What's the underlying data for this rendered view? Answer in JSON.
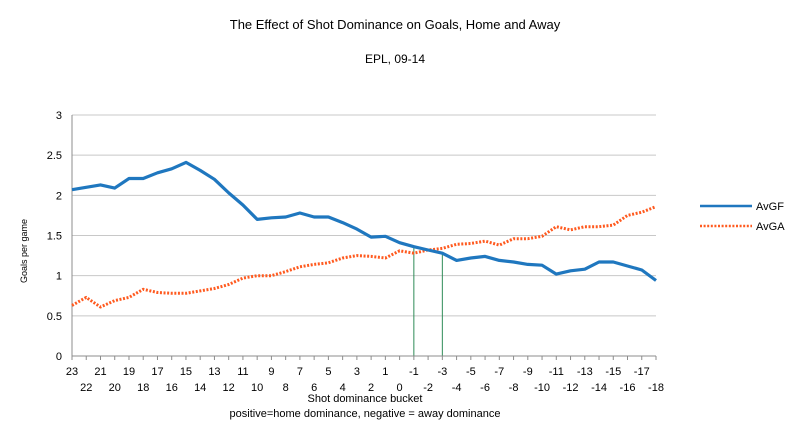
{
  "chart_data": {
    "type": "line",
    "title": "The Effect of Shot Dominance on Goals, Home and Away",
    "subtitle": "EPL, 09-14",
    "xlabel": "Shot dominance bucket",
    "xlabel2": "positive=home dominance, negative = away dominance",
    "ylabel": "Goals per game",
    "ylim": [
      0,
      3
    ],
    "yticks": [
      "0",
      "0.5",
      "1",
      "1.5",
      "2",
      "2.5",
      "3"
    ],
    "grid": "horizontal",
    "legend_position": "right",
    "categories": [
      "23",
      "22",
      "21",
      "20",
      "19",
      "18",
      "17",
      "16",
      "15",
      "14",
      "13",
      "12",
      "11",
      "10",
      "9",
      "8",
      "7",
      "6",
      "5",
      "4",
      "3",
      "2",
      "1",
      "0",
      "-1",
      "-2",
      "-3",
      "-4",
      "-5",
      "-6",
      "-7",
      "-8",
      "-9",
      "-10",
      "-11",
      "-12",
      "-13",
      "-14",
      "-15",
      "-16",
      "-17",
      "-18"
    ],
    "series": [
      {
        "name": "AvGF",
        "color": "#1f77bf",
        "style": "solid",
        "values": [
          2.07,
          2.1,
          2.13,
          2.09,
          2.21,
          2.21,
          2.28,
          2.33,
          2.41,
          2.31,
          2.2,
          2.03,
          1.88,
          1.7,
          1.72,
          1.73,
          1.78,
          1.73,
          1.73,
          1.66,
          1.58,
          1.48,
          1.49,
          1.41,
          1.36,
          1.32,
          1.28,
          1.19,
          1.22,
          1.24,
          1.19,
          1.17,
          1.14,
          1.13,
          1.02,
          1.06,
          1.08,
          1.17,
          1.17,
          1.12,
          1.07,
          0.94
        ]
      },
      {
        "name": "AvGA",
        "color": "#ff5a1f",
        "style": "dotted",
        "values": [
          0.63,
          0.73,
          0.61,
          0.69,
          0.73,
          0.83,
          0.79,
          0.78,
          0.78,
          0.81,
          0.84,
          0.89,
          0.97,
          1.0,
          1.0,
          1.05,
          1.11,
          1.14,
          1.16,
          1.22,
          1.25,
          1.24,
          1.22,
          1.31,
          1.28,
          1.32,
          1.34,
          1.39,
          1.4,
          1.43,
          1.38,
          1.46,
          1.46,
          1.49,
          1.61,
          1.57,
          1.61,
          1.61,
          1.63,
          1.75,
          1.79,
          1.86
        ]
      }
    ],
    "reference_lines": [
      {
        "category": "-1",
        "color": "#2e8b57"
      },
      {
        "category": "-3",
        "color": "#2e8b57"
      }
    ]
  }
}
